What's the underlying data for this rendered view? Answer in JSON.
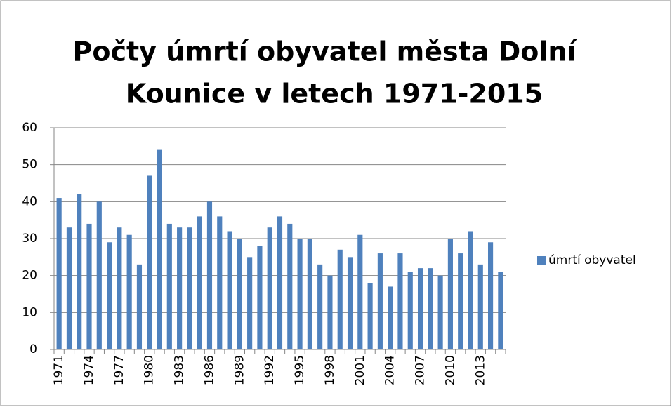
{
  "chart_data": {
    "type": "bar",
    "title": [
      "Počty úmrtí obyvatel města Dolní",
      "Kounice v letech 1971-2015"
    ],
    "categories": [
      "1971",
      null,
      null,
      "1974",
      null,
      null,
      "1977",
      null,
      null,
      "1980",
      null,
      null,
      "1983",
      null,
      null,
      "1986",
      null,
      null,
      "1989",
      null,
      null,
      "1992",
      null,
      null,
      "1995",
      null,
      null,
      "1998",
      null,
      null,
      "2001",
      null,
      null,
      "2004",
      null,
      null,
      "2007",
      null,
      null,
      "2010",
      null,
      null,
      "2013",
      null,
      null
    ],
    "series": [
      {
        "name": "úmrtí obyvatel",
        "color": "#4f81bd",
        "values": [
          41,
          33,
          42,
          34,
          40,
          29,
          33,
          31,
          23,
          47,
          54,
          34,
          33,
          33,
          36,
          40,
          36,
          32,
          30,
          25,
          28,
          33,
          36,
          34,
          30,
          30,
          23,
          20,
          27,
          25,
          31,
          18,
          26,
          17,
          26,
          21,
          22,
          22,
          20,
          30,
          26,
          32,
          23,
          29,
          21
        ]
      }
    ],
    "ylim": [
      0,
      60
    ],
    "yticks": [
      0,
      10,
      20,
      30,
      40,
      50,
      60
    ],
    "grid": true,
    "legend": "right"
  }
}
